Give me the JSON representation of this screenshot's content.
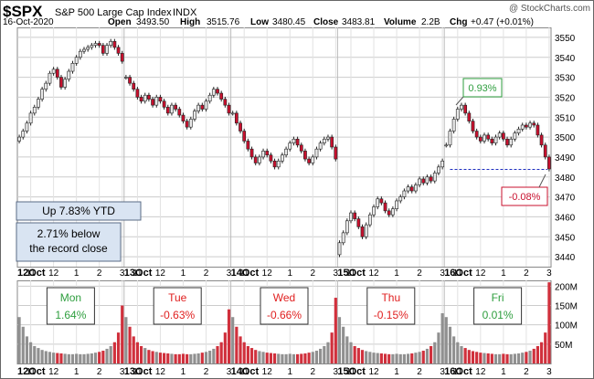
{
  "header": {
    "symbol": "$SPX",
    "name": "S&P 500 Large Cap Index",
    "exchange": "INDX",
    "credit": "@ StockCharts.com",
    "date": "16-Oct-2020",
    "open_label": "Open",
    "open": "3493.50",
    "high_label": "High",
    "high": "3515.76",
    "low_label": "Low",
    "low": "3480.45",
    "close_label": "Close",
    "close": "3483.81",
    "volume_label": "Volume",
    "volume": "2.2B",
    "chg_label": "Chg",
    "chg": "+0.47 (+0.01%)"
  },
  "annotations": {
    "ytd": "Up 7.83% YTD",
    "record_line1": "2.71% below",
    "record_line2": "the record close",
    "gain_label": "0.93%",
    "loss_label": "-0.08%"
  },
  "days": [
    {
      "name": "Mon",
      "pct": "1.64%",
      "color": "#2e9e3e"
    },
    {
      "name": "Tue",
      "pct": "-0.63%",
      "color": "#e02020"
    },
    {
      "name": "Wed",
      "pct": "-0.66%",
      "color": "#e02020"
    },
    {
      "name": "Thu",
      "pct": "-0.15%",
      "color": "#e02020"
    },
    {
      "name": "Fri",
      "pct": "0.01%",
      "color": "#2e9e3e"
    }
  ],
  "colors": {
    "up": "#e8e8e8",
    "down": "#c8102e",
    "grid": "#cccccc",
    "vol_up": "#909090",
    "vol_down": "#d0303c",
    "reference": "#1f2fbf"
  },
  "chart_data": {
    "type": "candlestick",
    "interval": "intraday",
    "price_axis": {
      "ticks": [
        3440,
        3450,
        3460,
        3470,
        3480,
        3490,
        3500,
        3510,
        3520,
        3530,
        3540,
        3550
      ],
      "ylim": [
        3435,
        3555
      ]
    },
    "volume_axis": {
      "ticks": [
        "50M",
        "100M",
        "150M",
        "200M"
      ],
      "tick_values": [
        50,
        100,
        150,
        200
      ],
      "ylim": [
        0,
        215
      ]
    },
    "x_tick_labels": [
      "12Oct",
      "11",
      "12",
      "1",
      "2",
      "3",
      "13Oct",
      "11",
      "12",
      "1",
      "2",
      "3",
      "14Oct",
      "11",
      "12",
      "1",
      "2",
      "3",
      "15Oct",
      "11",
      "12",
      "1",
      "2",
      "3",
      "16Oct",
      "11",
      "12",
      "1",
      "2",
      "3"
    ],
    "reference_line": {
      "value": 3483.8
    },
    "sessions": [
      {
        "day": "12Oct",
        "closes": [
          3500,
          3503,
          3507,
          3512,
          3515,
          3519,
          3524,
          3527,
          3532,
          3534,
          3530,
          3525,
          3529,
          3533,
          3537,
          3540,
          3543,
          3544,
          3545,
          3546,
          3547,
          3546,
          3542,
          3546,
          3548,
          3545,
          3542,
          3538
        ]
      },
      {
        "day": "13Oct",
        "closes": [
          3530,
          3527,
          3524,
          3520,
          3518,
          3521,
          3519,
          3516,
          3520,
          3518,
          3515,
          3512,
          3516,
          3514,
          3511,
          3508,
          3505,
          3509,
          3513,
          3516,
          3514,
          3518,
          3521,
          3524,
          3522,
          3519,
          3516,
          3512
        ]
      },
      {
        "day": "14Oct",
        "closes": [
          3512,
          3507,
          3503,
          3498,
          3494,
          3490,
          3487,
          3490,
          3493,
          3491,
          3488,
          3485,
          3488,
          3491,
          3494,
          3497,
          3499,
          3496,
          3493,
          3489,
          3487,
          3490,
          3494,
          3497,
          3499,
          3500,
          3495,
          3489
        ]
      },
      {
        "day": "15Oct",
        "closes": [
          3447,
          3452,
          3458,
          3462,
          3459,
          3455,
          3450,
          3456,
          3461,
          3465,
          3469,
          3467,
          3463,
          3461,
          3464,
          3468,
          3470,
          3473,
          3475,
          3473,
          3476,
          3479,
          3477,
          3480,
          3478,
          3482,
          3485,
          3488
        ]
      },
      {
        "day": "16Oct",
        "closes": [
          3496,
          3503,
          3509,
          3514,
          3516,
          3512,
          3508,
          3503,
          3500,
          3498,
          3501,
          3499,
          3497,
          3500,
          3502,
          3499,
          3496,
          3499,
          3502,
          3504,
          3506,
          3505,
          3507,
          3506,
          3501,
          3496,
          3490,
          3484
        ]
      }
    ],
    "volume_profile_M": [
      [
        120,
        95,
        70,
        55,
        45,
        40,
        35,
        32,
        30,
        28,
        27,
        26,
        25,
        24,
        24,
        25,
        24,
        24,
        25,
        26,
        28,
        30,
        33,
        38,
        45,
        55,
        80,
        150
      ],
      [
        120,
        95,
        70,
        55,
        45,
        40,
        35,
        32,
        30,
        28,
        27,
        26,
        25,
        24,
        24,
        25,
        24,
        24,
        25,
        26,
        28,
        30,
        33,
        38,
        45,
        55,
        80,
        140
      ],
      [
        120,
        95,
        70,
        55,
        45,
        40,
        35,
        32,
        30,
        28,
        27,
        26,
        25,
        24,
        24,
        25,
        24,
        24,
        25,
        26,
        28,
        30,
        33,
        38,
        45,
        55,
        80,
        170
      ],
      [
        120,
        95,
        70,
        55,
        45,
        40,
        35,
        32,
        30,
        28,
        27,
        26,
        25,
        24,
        24,
        25,
        24,
        24,
        25,
        26,
        28,
        30,
        33,
        38,
        45,
        55,
        80,
        130
      ],
      [
        120,
        95,
        70,
        55,
        45,
        40,
        35,
        32,
        30,
        28,
        27,
        26,
        25,
        24,
        24,
        25,
        24,
        24,
        25,
        26,
        28,
        30,
        33,
        38,
        45,
        55,
        80,
        210
      ]
    ]
  }
}
